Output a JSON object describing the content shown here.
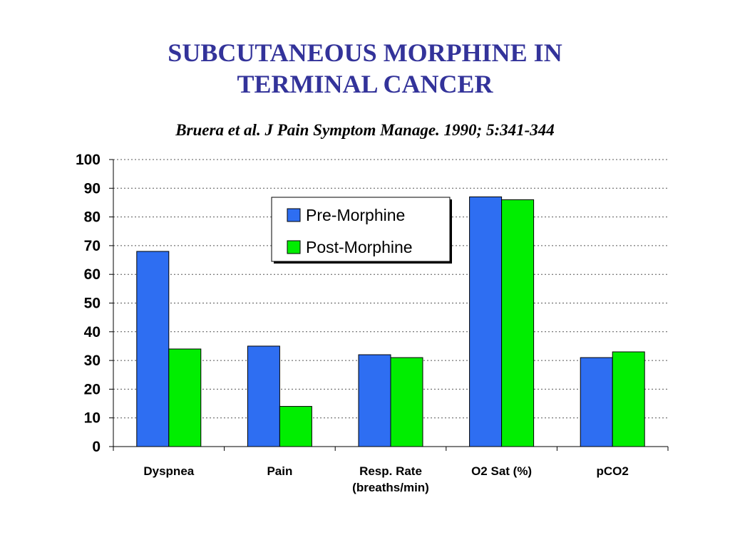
{
  "slide": {
    "title_line1": "SUBCUTANEOUS MORPHINE  IN",
    "title_line2": "TERMINAL  CANCER",
    "citation": "Bruera et al. J Pain Symptom Manage.  1990; 5:341-344"
  },
  "chart_data": {
    "type": "bar",
    "title": "",
    "xlabel": "",
    "ylabel": "",
    "categories": [
      [
        "Dyspnea"
      ],
      [
        "Pain"
      ],
      [
        "Resp. Rate",
        "(breaths/min)"
      ],
      [
        "O2 Sat (%)"
      ],
      [
        "pCO2"
      ]
    ],
    "series": [
      {
        "name": "Pre-Morphine",
        "color": "#2e6ef2",
        "values": [
          68,
          35,
          32,
          87,
          31
        ]
      },
      {
        "name": "Post-Morphine",
        "color": "#00ee00",
        "values": [
          34,
          14,
          31,
          86,
          33
        ]
      }
    ],
    "ylim": [
      0,
      100
    ],
    "yticks": [
      0,
      10,
      20,
      30,
      40,
      50,
      60,
      70,
      80,
      90,
      100
    ],
    "grid": true,
    "legend_position": "top-center"
  }
}
